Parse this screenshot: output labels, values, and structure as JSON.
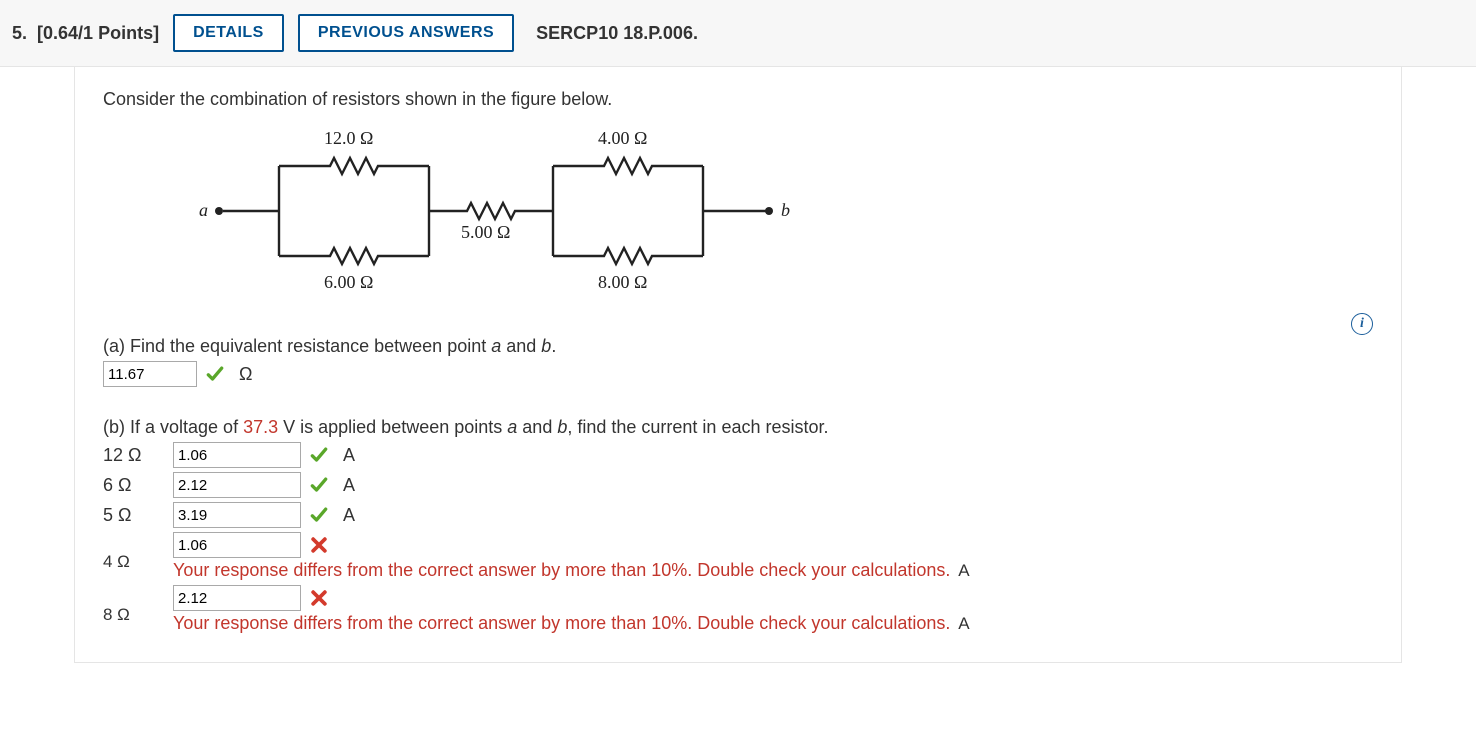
{
  "header": {
    "qnum": "5.",
    "points": "[0.64/1 Points]",
    "details_btn": "DETAILS",
    "prev_btn": "PREVIOUS ANSWERS",
    "ref": "SERCP10 18.P.006."
  },
  "prompt": "Consider the combination of resistors shown in the figure below.",
  "circuit": {
    "node_a": "a",
    "node_b": "b",
    "r_top_left": "12.0 Ω",
    "r_bot_left": "6.00 Ω",
    "r_mid": "5.00 Ω",
    "r_top_right": "4.00 Ω",
    "r_bot_right": "8.00 Ω",
    "wire_color": "#222222",
    "wire_width": 2.4
  },
  "info_icon": "i",
  "part_a": {
    "text_pre": "(a) Find the equivalent resistance between point ",
    "a": "a",
    "mid": " and ",
    "b": "b",
    "post": ".",
    "value": "11.67",
    "unit": "Ω",
    "correct": true
  },
  "part_b": {
    "text_pre": "(b) If a voltage of ",
    "voltage": "37.3",
    "text_mid1": " V is applied between points ",
    "a": "a",
    "mid": " and ",
    "b": "b",
    "text_post": ", find the current in each resistor.",
    "rows": [
      {
        "label": "12 Ω",
        "value": "1.06",
        "unit": "A",
        "correct": true,
        "feedback": ""
      },
      {
        "label": "6 Ω",
        "value": "2.12",
        "unit": "A",
        "correct": true,
        "feedback": ""
      },
      {
        "label": "5 Ω",
        "value": "3.19",
        "unit": "A",
        "correct": true,
        "feedback": ""
      },
      {
        "label": "4 Ω",
        "value": "1.06",
        "unit": "A",
        "correct": false,
        "feedback": "Your response differs from the correct answer by more than 10%. Double check your calculations."
      },
      {
        "label": "8 Ω",
        "value": "2.12",
        "unit": "A",
        "correct": false,
        "feedback": "Your response differs from the correct answer by more than 10%. Double check your calculations."
      }
    ]
  },
  "marks": {
    "check_color": "#5aa72a",
    "x_color": "#d33a2c"
  }
}
